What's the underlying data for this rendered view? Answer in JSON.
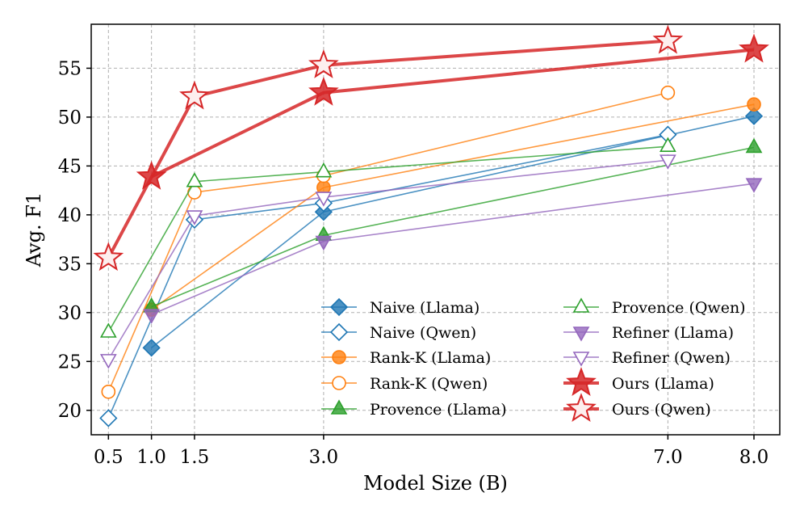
{
  "chart_data": {
    "type": "line",
    "title": "",
    "xlabel": "Model Size (B)",
    "ylabel": "Avg. F1",
    "xlim": [
      0.3,
      8.3
    ],
    "ylim": [
      17.5,
      59.5
    ],
    "grid": true,
    "legend_placement": "lower-right",
    "x_ticks": [
      0.5,
      1.0,
      1.5,
      3.0,
      7.0,
      8.0
    ],
    "x_tick_labels": [
      "0.5",
      "1.0",
      "1.5",
      "3.0",
      "7.0",
      "8.0"
    ],
    "y_ticks": [
      20,
      25,
      30,
      35,
      40,
      45,
      50,
      55
    ],
    "y_tick_labels": [
      "20",
      "25",
      "30",
      "35",
      "40",
      "45",
      "50",
      "55"
    ],
    "series": [
      {
        "name": "Naive (Llama)",
        "color": "#1f77b4",
        "marker": "diamond",
        "filled": true,
        "x": [
          1.0,
          3.0,
          8.0
        ],
        "values": [
          26.4,
          40.3,
          50.1
        ]
      },
      {
        "name": "Naive (Qwen)",
        "color": "#1f77b4",
        "marker": "diamond",
        "filled": false,
        "x": [
          0.5,
          1.5,
          3.0,
          7.0
        ],
        "values": [
          19.2,
          39.5,
          41.2,
          48.2
        ]
      },
      {
        "name": "Rank-K (Llama)",
        "color": "#ff7f0e",
        "marker": "circle",
        "filled": true,
        "x": [
          1.0,
          3.0,
          8.0
        ],
        "values": [
          30.3,
          42.8,
          51.3
        ]
      },
      {
        "name": "Rank-K (Qwen)",
        "color": "#ff7f0e",
        "marker": "circle",
        "filled": false,
        "x": [
          0.5,
          1.5,
          3.0,
          7.0
        ],
        "values": [
          21.9,
          42.3,
          44.0,
          52.5
        ]
      },
      {
        "name": "Provence (Llama)",
        "color": "#2ca02c",
        "marker": "triangle-up",
        "filled": true,
        "x": [
          1.0,
          3.0,
          8.0
        ],
        "values": [
          30.6,
          37.9,
          46.9
        ]
      },
      {
        "name": "Provence (Qwen)",
        "color": "#2ca02c",
        "marker": "triangle-up",
        "filled": false,
        "x": [
          0.5,
          1.5,
          3.0,
          7.0
        ],
        "values": [
          28.0,
          43.4,
          44.4,
          47.0
        ]
      },
      {
        "name": "Refiner (Llama)",
        "color": "#9467bd",
        "marker": "triangle-down",
        "filled": true,
        "x": [
          1.0,
          3.0,
          8.0
        ],
        "values": [
          29.8,
          37.3,
          43.2
        ]
      },
      {
        "name": "Refiner (Qwen)",
        "color": "#9467bd",
        "marker": "triangle-down",
        "filled": false,
        "x": [
          0.5,
          1.5,
          3.0,
          7.0
        ],
        "values": [
          25.2,
          39.9,
          41.8,
          45.6
        ]
      },
      {
        "name": "Ours (Llama)",
        "color": "#d62728",
        "marker": "star",
        "filled": true,
        "bold": true,
        "x": [
          1.0,
          3.0,
          8.0
        ],
        "values": [
          43.9,
          52.5,
          56.9
        ]
      },
      {
        "name": "Ours (Qwen)",
        "color": "#d62728",
        "marker": "star",
        "filled": false,
        "bold": true,
        "x": [
          0.5,
          1.5,
          3.0,
          7.0
        ],
        "values": [
          35.6,
          52.1,
          55.3,
          57.8
        ]
      }
    ]
  }
}
